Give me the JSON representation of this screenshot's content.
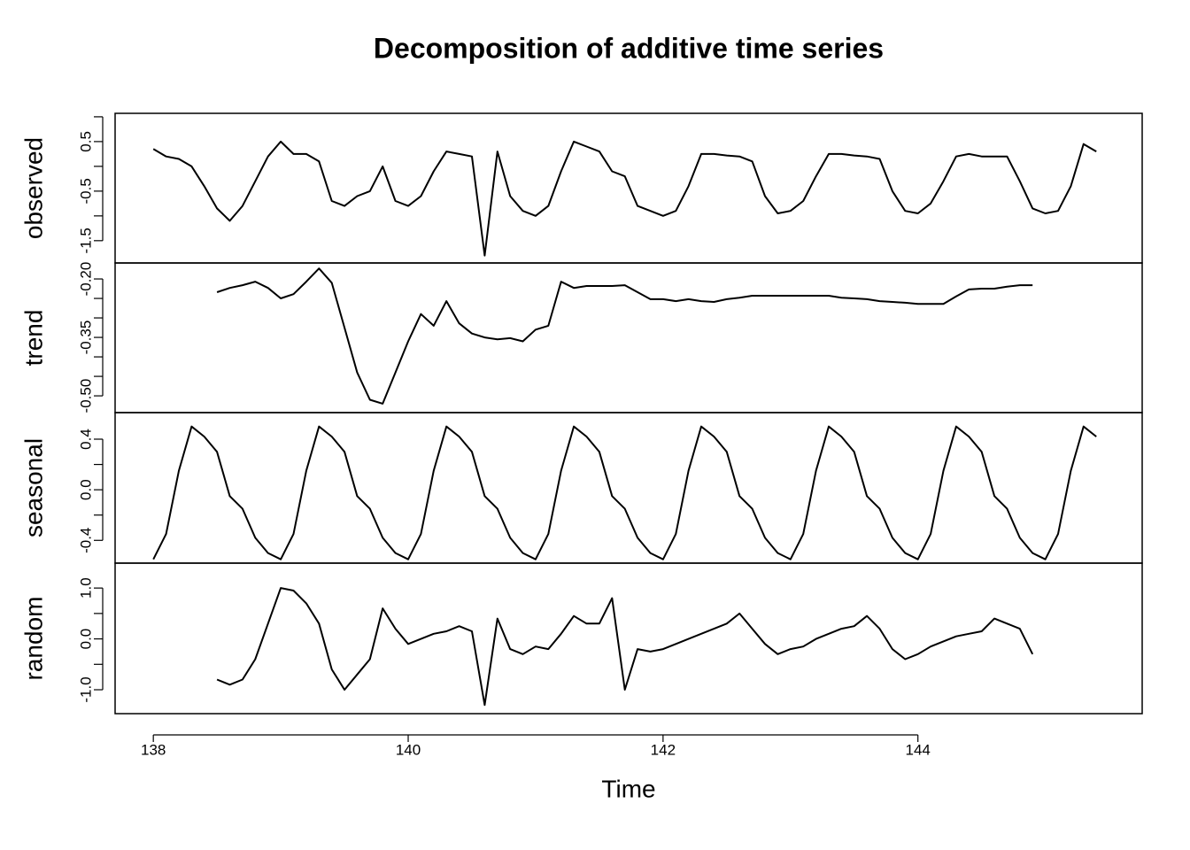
{
  "chart_data": {
    "type": "line",
    "title": "Decomposition of additive time series",
    "xlabel": "Time",
    "xlim": [
      137.7,
      145.76
    ],
    "xticks": [
      138,
      140,
      142,
      144
    ],
    "color": "#000000",
    "x": [
      138.0,
      138.1,
      138.2,
      138.3,
      138.4,
      138.5,
      138.6,
      138.7,
      138.8,
      138.9,
      139.0,
      139.1,
      139.2,
      139.3,
      139.4,
      139.5,
      139.6,
      139.7,
      139.8,
      139.9,
      140.0,
      140.1,
      140.2,
      140.3,
      140.4,
      140.5,
      140.6,
      140.7,
      140.8,
      140.9,
      141.0,
      141.1,
      141.2,
      141.3,
      141.4,
      141.5,
      141.6,
      141.7,
      141.8,
      141.9,
      142.0,
      142.1,
      142.2,
      142.3,
      142.4,
      142.5,
      142.6,
      142.7,
      142.8,
      142.9,
      143.0,
      143.1,
      143.2,
      143.3,
      143.4,
      143.5,
      143.6,
      143.7,
      143.8,
      143.9,
      144.0,
      144.1,
      144.2,
      144.3,
      144.4,
      144.5,
      144.6,
      144.7,
      144.8,
      144.9,
      145.0,
      145.1,
      145.2,
      145.3,
      145.4
    ],
    "panels": [
      {
        "name": "observed",
        "ylim": [
          -1.95,
          1.07
        ],
        "yticks": [
          0.5,
          -0.5,
          -1.5
        ],
        "yminor": [
          1.0,
          0,
          -1.0
        ],
        "values": [
          0.35,
          0.2,
          0.15,
          0.0,
          -0.4,
          -0.85,
          -1.1,
          -0.8,
          -0.3,
          0.2,
          0.5,
          0.25,
          0.25,
          0.1,
          -0.7,
          -0.8,
          -0.6,
          -0.5,
          0.0,
          -0.7,
          -0.8,
          -0.6,
          -0.1,
          0.3,
          0.25,
          0.2,
          -1.8,
          0.3,
          -0.6,
          -0.9,
          -1.0,
          -0.8,
          -0.1,
          0.5,
          0.4,
          0.3,
          -0.1,
          -0.2,
          -0.8,
          -0.9,
          -1.0,
          -0.9,
          -0.4,
          0.25,
          0.25,
          0.22,
          0.2,
          0.1,
          -0.6,
          -0.95,
          -0.9,
          -0.7,
          -0.2,
          0.25,
          0.25,
          0.22,
          0.2,
          0.15,
          -0.5,
          -0.9,
          -0.95,
          -0.75,
          -0.3,
          0.2,
          0.25,
          0.2,
          0.2,
          0.2,
          -0.3,
          -0.85,
          -0.95,
          -0.9,
          -0.4,
          0.45,
          0.3
        ]
      },
      {
        "name": "trend",
        "ylim": [
          -0.543,
          -0.159
        ],
        "yticks": [
          {
            "value": -0.2,
            "label": "-0.20"
          },
          -0.35,
          {
            "value": -0.5,
            "label": "-0.50"
          }
        ],
        "yminor": [
          -0.25,
          -0.3,
          -0.4,
          -0.45
        ],
        "values": [
          null,
          null,
          null,
          null,
          null,
          -0.234,
          -0.223,
          -0.216,
          -0.207,
          -0.223,
          -0.25,
          -0.239,
          -0.207,
          -0.173,
          -0.21,
          -0.325,
          -0.44,
          -0.51,
          -0.52,
          -0.44,
          -0.36,
          -0.29,
          -0.32,
          -0.257,
          -0.314,
          -0.34,
          -0.35,
          -0.355,
          -0.352,
          -0.36,
          -0.33,
          -0.32,
          -0.207,
          -0.223,
          -0.218,
          -0.218,
          -0.218,
          -0.216,
          -0.234,
          -0.252,
          -0.252,
          -0.257,
          -0.252,
          -0.257,
          -0.259,
          -0.252,
          -0.248,
          -0.243,
          -0.243,
          -0.243,
          -0.243,
          -0.243,
          -0.243,
          -0.243,
          -0.248,
          -0.25,
          -0.252,
          -0.257,
          -0.259,
          -0.261,
          -0.264,
          -0.264,
          -0.264,
          -0.245,
          -0.227,
          -0.225,
          -0.225,
          -0.22,
          -0.216,
          -0.216,
          null,
          null,
          null,
          null,
          null
        ]
      },
      {
        "name": "seasonal",
        "ylim": [
          -0.58,
          0.61
        ],
        "yticks": [
          0.4,
          {
            "value": 0,
            "label": "0.0"
          },
          -0.4
        ],
        "yminor": [
          0.2,
          -0.2
        ],
        "values": [
          -0.55,
          -0.35,
          0.15,
          0.5,
          0.42,
          0.3,
          -0.05,
          -0.15,
          -0.38,
          -0.5,
          -0.55,
          -0.35,
          0.15,
          0.5,
          0.42,
          0.3,
          -0.05,
          -0.15,
          -0.38,
          -0.5,
          -0.55,
          -0.35,
          0.15,
          0.5,
          0.42,
          0.3,
          -0.05,
          -0.15,
          -0.38,
          -0.5,
          -0.55,
          -0.35,
          0.15,
          0.5,
          0.42,
          0.3,
          -0.05,
          -0.15,
          -0.38,
          -0.5,
          -0.55,
          -0.35,
          0.15,
          0.5,
          0.42,
          0.3,
          -0.05,
          -0.15,
          -0.38,
          -0.5,
          -0.55,
          -0.35,
          0.15,
          0.5,
          0.42,
          0.3,
          -0.05,
          -0.15,
          -0.38,
          -0.5,
          -0.55,
          -0.35,
          0.15,
          0.5,
          0.42,
          0.3,
          -0.05,
          -0.15,
          -0.38,
          -0.5,
          -0.55,
          -0.35,
          0.15,
          0.5,
          0.42
        ]
      },
      {
        "name": "random",
        "ylim": [
          -1.47,
          1.49
        ],
        "yticks": [
          {
            "value": 1,
            "label": "1.0"
          },
          {
            "value": 0,
            "label": "0.0"
          },
          {
            "value": -1,
            "label": "-1.0"
          }
        ],
        "yminor": [
          0.5,
          -0.5
        ],
        "values": [
          null,
          null,
          null,
          null,
          null,
          -0.8,
          -0.9,
          -0.8,
          -0.4,
          0.3,
          1.0,
          0.95,
          0.7,
          0.3,
          -0.6,
          -1.0,
          -0.7,
          -0.4,
          0.6,
          0.2,
          -0.1,
          0.0,
          0.1,
          0.15,
          0.25,
          0.15,
          -1.3,
          0.4,
          -0.2,
          -0.3,
          -0.15,
          -0.2,
          0.1,
          0.45,
          0.3,
          0.3,
          0.8,
          -1.0,
          -0.2,
          -0.25,
          -0.2,
          -0.1,
          0.0,
          0.1,
          0.2,
          0.3,
          0.5,
          0.2,
          -0.1,
          -0.3,
          -0.2,
          -0.15,
          0.0,
          0.1,
          0.2,
          0.25,
          0.45,
          0.2,
          -0.2,
          -0.4,
          -0.3,
          -0.15,
          -0.05,
          0.05,
          0.1,
          0.15,
          0.4,
          0.3,
          0.2,
          -0.3,
          null,
          null,
          null,
          null,
          null
        ]
      }
    ]
  }
}
